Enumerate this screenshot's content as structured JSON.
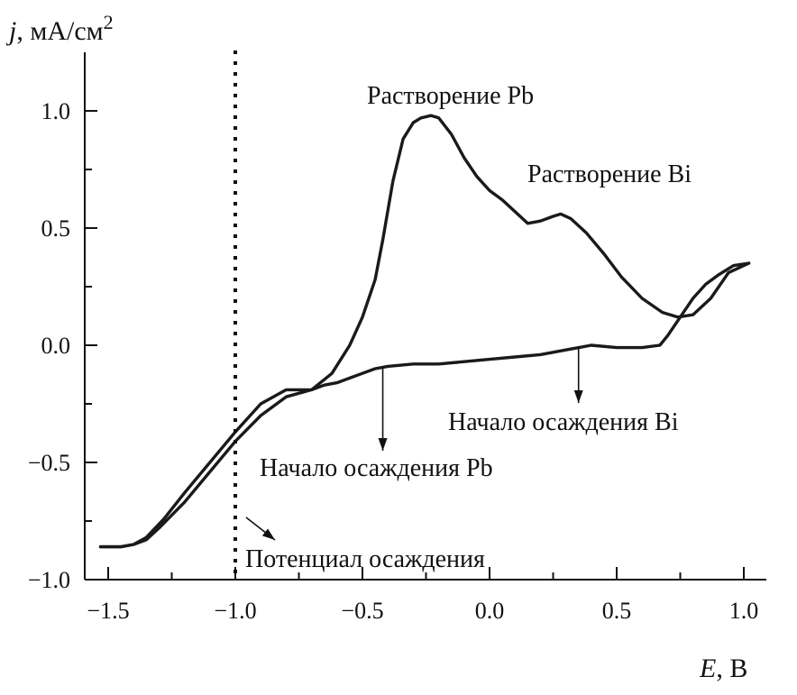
{
  "chart_data": {
    "type": "line",
    "title": "",
    "xlabel": {
      "italic": "E",
      "rest": ", В"
    },
    "ylabel": {
      "italic": "j",
      "rest": ", мА/см",
      "sup": "2"
    },
    "xlim": [
      -1.6,
      1.1
    ],
    "ylim": [
      -1.0,
      1.25
    ],
    "xticks": [
      -1.5,
      -1.0,
      -0.5,
      0.0,
      0.5,
      1.0
    ],
    "xtick_labels": [
      "−1.5",
      "−1.0",
      "−0.5",
      "0.0",
      "0.5",
      "1.0"
    ],
    "yticks": [
      -1.0,
      -0.5,
      0.0,
      0.5,
      1.0
    ],
    "ytick_labels": [
      "−1.0",
      "−0.5",
      "0.0",
      "0.5",
      "1.0"
    ],
    "grid": false,
    "series": [
      {
        "x": [
          -1.53,
          -1.45,
          -1.4,
          -1.35,
          -1.28,
          -1.2,
          -1.1,
          -1.0,
          -0.9,
          -0.8,
          -0.7,
          -0.62,
          -0.55,
          -0.5,
          -0.45,
          -0.42,
          -0.38,
          -0.34,
          -0.3,
          -0.27,
          -0.23,
          -0.2,
          -0.15,
          -0.1,
          -0.05,
          0.0,
          0.05,
          0.1,
          0.15,
          0.2,
          0.25,
          0.28,
          0.32,
          0.38,
          0.45,
          0.52,
          0.6,
          0.68,
          0.74,
          0.8,
          0.87,
          0.94,
          1.02
        ],
        "y": [
          -0.86,
          -0.86,
          -0.85,
          -0.82,
          -0.74,
          -0.63,
          -0.5,
          -0.37,
          -0.25,
          -0.19,
          -0.19,
          -0.12,
          0.0,
          0.12,
          0.28,
          0.45,
          0.7,
          0.88,
          0.95,
          0.97,
          0.98,
          0.97,
          0.9,
          0.8,
          0.72,
          0.66,
          0.62,
          0.57,
          0.52,
          0.53,
          0.55,
          0.56,
          0.54,
          0.48,
          0.39,
          0.29,
          0.2,
          0.14,
          0.12,
          0.13,
          0.2,
          0.31,
          0.35
        ]
      },
      {
        "x": [
          1.02,
          0.96,
          0.9,
          0.85,
          0.8,
          0.75,
          0.7,
          0.67,
          0.6,
          0.5,
          0.4,
          0.3,
          0.2,
          0.1,
          0.0,
          -0.1,
          -0.2,
          -0.3,
          -0.4,
          -0.45,
          -0.5,
          -0.55,
          -0.6,
          -0.65,
          -0.7,
          -0.8,
          -0.9,
          -1.0,
          -1.1,
          -1.2,
          -1.3,
          -1.35,
          -1.4,
          -1.45,
          -1.5,
          -1.53
        ],
        "y": [
          0.35,
          0.34,
          0.3,
          0.26,
          0.2,
          0.12,
          0.04,
          0.0,
          -0.01,
          -0.01,
          0.0,
          -0.02,
          -0.04,
          -0.05,
          -0.06,
          -0.07,
          -0.08,
          -0.08,
          -0.09,
          -0.1,
          -0.12,
          -0.14,
          -0.16,
          -0.17,
          -0.19,
          -0.22,
          -0.3,
          -0.41,
          -0.54,
          -0.67,
          -0.78,
          -0.83,
          -0.85,
          -0.86,
          -0.86,
          -0.86
        ]
      }
    ],
    "vline": {
      "x": -1.0,
      "style": "dotted"
    },
    "annotations": [
      {
        "text": "Растворение Pb"
      },
      {
        "text": "Растворение Bi"
      },
      {
        "text": "Начало осаждения Bi"
      },
      {
        "text": "Начало осаждения Pb"
      },
      {
        "text": "Потенциал осаждения"
      }
    ]
  }
}
